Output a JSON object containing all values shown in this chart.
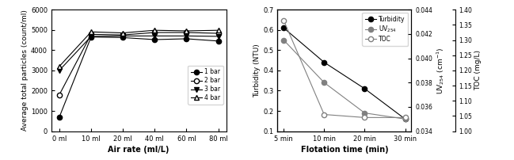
{
  "left": {
    "x_labels": [
      "0 ml",
      "10 ml",
      "20 ml",
      "40 ml",
      "60 ml",
      "80 ml"
    ],
    "x_values": [
      0,
      10,
      20,
      40,
      60,
      80
    ],
    "series": [
      [
        700,
        4650,
        4620,
        4520,
        4560,
        4450
      ],
      [
        1800,
        4780,
        4750,
        4870,
        4870,
        4830
      ],
      [
        3000,
        4680,
        4700,
        4700,
        4700,
        4680
      ],
      [
        3200,
        4900,
        4850,
        4980,
        4950,
        4980
      ]
    ],
    "ylabel": "Average total particles (count/ml)",
    "xlabel": "Air rate (ml/L)",
    "ylim": [
      0,
      6000
    ],
    "yticks": [
      0,
      1000,
      2000,
      3000,
      4000,
      5000,
      6000
    ],
    "legend_labels": [
      "1 bar",
      "2 bar",
      "3 bar",
      "4 bar"
    ],
    "markers": [
      "o",
      "o",
      "v",
      "^"
    ],
    "mfc": [
      "black",
      "white",
      "black",
      "white"
    ]
  },
  "right": {
    "x_labels": [
      "5 min",
      "10 min",
      "20 min",
      "30 min"
    ],
    "turbidity": [
      0.61,
      0.44,
      0.31,
      0.16
    ],
    "uv254": [
      0.0415,
      0.038,
      0.0355,
      0.035
    ],
    "toc": [
      1.365,
      1.055,
      1.045,
      1.045
    ],
    "ylabel_left": "Turbidity (NTU)",
    "ylabel_uv": "UV$_{254}$ (cm$^{-1}$)",
    "ylabel_toc": "TOC (mg/L)",
    "xlabel": "Flotation time (min)",
    "ylim_left": [
      0.1,
      0.7
    ],
    "yticks_left": [
      0.1,
      0.2,
      0.3,
      0.4,
      0.5,
      0.6,
      0.7
    ],
    "ylim_uv": [
      0.034,
      0.044
    ],
    "yticks_uv": [
      0.034,
      0.036,
      0.038,
      0.04,
      0.042,
      0.044
    ],
    "ylim_toc": [
      1.0,
      1.4
    ],
    "yticks_toc": [
      1.0,
      1.05,
      1.1,
      1.15,
      1.2,
      1.25,
      1.3,
      1.35,
      1.4
    ],
    "legend_labels": [
      "Turbidity",
      "UV$_{254}$",
      "TOC"
    ],
    "turb_mfc": "black",
    "uv_mfc": "gray",
    "toc_mfc": "white",
    "turb_color": "black",
    "uv_color": "gray",
    "toc_color": "gray"
  }
}
